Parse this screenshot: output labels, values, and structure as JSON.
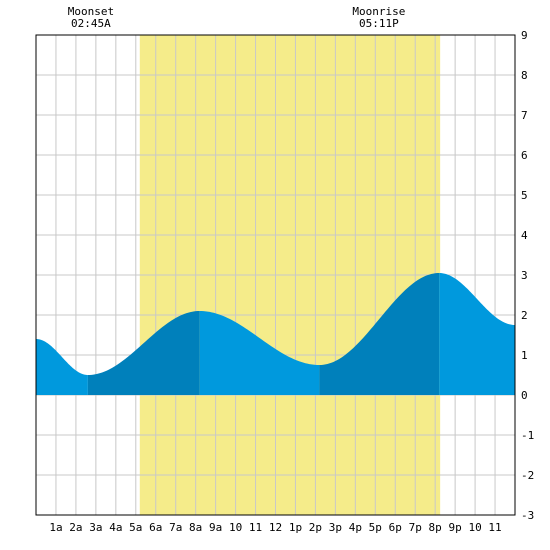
{
  "chart_data": {
    "type": "area",
    "xlim": [
      0,
      24
    ],
    "ylim": [
      -3,
      9
    ],
    "x_ticks": [
      {
        "hour": 1,
        "label": "1a"
      },
      {
        "hour": 2,
        "label": "2a"
      },
      {
        "hour": 3,
        "label": "3a"
      },
      {
        "hour": 4,
        "label": "4a"
      },
      {
        "hour": 5,
        "label": "5a"
      },
      {
        "hour": 6,
        "label": "6a"
      },
      {
        "hour": 7,
        "label": "7a"
      },
      {
        "hour": 8,
        "label": "8a"
      },
      {
        "hour": 9,
        "label": "9a"
      },
      {
        "hour": 10,
        "label": "10"
      },
      {
        "hour": 11,
        "label": "11"
      },
      {
        "hour": 12,
        "label": "12"
      },
      {
        "hour": 13,
        "label": "1p"
      },
      {
        "hour": 14,
        "label": "2p"
      },
      {
        "hour": 15,
        "label": "3p"
      },
      {
        "hour": 16,
        "label": "4p"
      },
      {
        "hour": 17,
        "label": "5p"
      },
      {
        "hour": 18,
        "label": "6p"
      },
      {
        "hour": 19,
        "label": "7p"
      },
      {
        "hour": 20,
        "label": "8p"
      },
      {
        "hour": 21,
        "label": "9p"
      },
      {
        "hour": 22,
        "label": "10"
      },
      {
        "hour": 23,
        "label": "11"
      }
    ],
    "y_ticks": [
      -3,
      -2,
      -1,
      0,
      1,
      2,
      3,
      4,
      5,
      6,
      7,
      8,
      9
    ],
    "grid": true,
    "daylight": {
      "start_hour": 5.2,
      "end_hour": 20.25
    },
    "tide_extrema": [
      {
        "hour": 0.0,
        "height": 1.4
      },
      {
        "hour": 2.6,
        "height": 0.5
      },
      {
        "hour": 8.2,
        "height": 2.1
      },
      {
        "hour": 14.2,
        "height": 0.75
      },
      {
        "hour": 20.2,
        "height": 3.05
      },
      {
        "hour": 24.0,
        "height": 1.75
      }
    ],
    "shade_bands": [
      {
        "from_hour": 0,
        "to_hour": 2.6,
        "color": "#0099dd"
      },
      {
        "from_hour": 2.6,
        "to_hour": 8.2,
        "color": "#0080bb"
      },
      {
        "from_hour": 8.2,
        "to_hour": 14.2,
        "color": "#0099dd"
      },
      {
        "from_hour": 14.2,
        "to_hour": 20.2,
        "color": "#0080bb"
      },
      {
        "from_hour": 20.2,
        "to_hour": 24,
        "color": "#0099dd"
      }
    ],
    "moon_events": [
      {
        "name": "Moonset",
        "time": "02:45A",
        "hour": 2.75
      },
      {
        "name": "Moonrise",
        "time": "05:11P",
        "hour": 17.18
      }
    ],
    "colors": {
      "daylight": "#f5ec8a",
      "grid": "#c8c8c8",
      "frame": "#000000"
    }
  }
}
